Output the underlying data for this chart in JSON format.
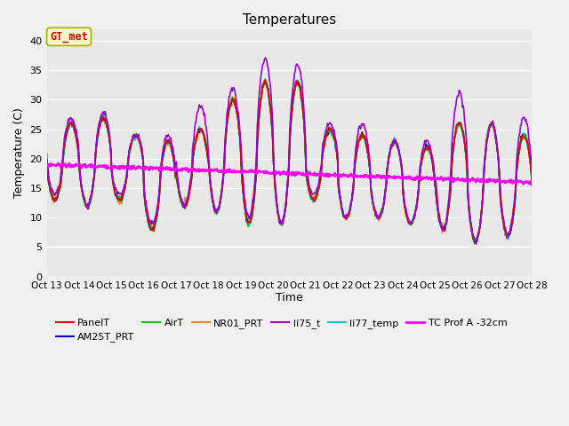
{
  "title": "Temperatures",
  "xlabel": "Time",
  "ylabel": "Temperature (C)",
  "ylim": [
    0,
    42
  ],
  "yticks": [
    0,
    5,
    10,
    15,
    20,
    25,
    30,
    35,
    40
  ],
  "background_color": "#e8e8e8",
  "fig_background": "#f0f0f0",
  "annotation_text": "GT_met",
  "annotation_color": "#cc0000",
  "annotation_bg": "#ffffcc",
  "annotation_border": "#aaaa00",
  "series": {
    "PanelT": {
      "color": "#dd0000",
      "lw": 1.2
    },
    "AM25T_PRT": {
      "color": "#0000cc",
      "lw": 1.2
    },
    "AirT": {
      "color": "#00cc00",
      "lw": 1.2
    },
    "NR01_PRT": {
      "color": "#ff8800",
      "lw": 1.2
    },
    "li75_t": {
      "color": "#9900cc",
      "lw": 1.2
    },
    "li77_temp": {
      "color": "#00cccc",
      "lw": 1.2
    },
    "TC Prof A -32cm": {
      "color": "#ff00ff",
      "lw": 2.0
    }
  },
  "xtick_labels": [
    "Oct 13",
    "Oct 14",
    "Oct 15",
    "Oct 16",
    "Oct 17",
    "Oct 18",
    "Oct 19",
    "Oct 20",
    "Oct 21",
    "Oct 22",
    "Oct 23",
    "Oct 24",
    "Oct 25",
    "Oct 26",
    "Oct 27",
    "Oct 28"
  ],
  "xtick_positions": [
    13,
    14,
    15,
    16,
    17,
    18,
    19,
    20,
    21,
    22,
    23,
    24,
    25,
    26,
    27,
    28
  ],
  "day_max_temps": [
    26,
    27,
    24,
    23,
    25,
    30,
    33,
    33,
    25,
    24,
    23,
    22,
    26,
    26,
    24,
    24
  ],
  "day_min_temps": [
    13,
    12,
    13,
    8,
    12,
    11,
    9,
    9,
    13,
    10,
    10,
    9,
    8,
    6,
    7,
    8
  ],
  "day_max_li75": [
    27,
    28,
    24,
    24,
    29,
    32,
    37,
    36,
    26,
    26,
    23,
    23,
    31,
    26,
    27,
    25
  ],
  "day_min_li75": [
    14,
    12,
    14,
    9,
    12,
    11,
    10,
    9,
    14,
    10,
    10,
    9,
    8,
    6,
    7,
    8
  ],
  "tc_prof_start": 19.0,
  "tc_prof_end": 16.0
}
